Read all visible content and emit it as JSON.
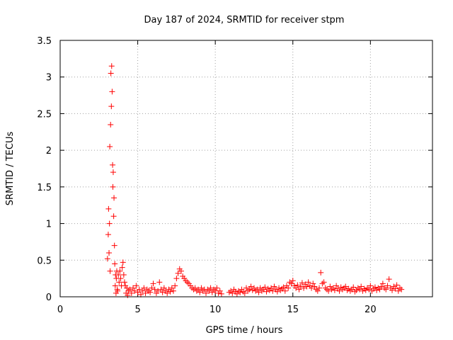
{
  "chart_data": {
    "type": "scatter",
    "title": "Day 187 of 2024, SRMTID for receiver stpm",
    "xlabel": "GPS time / hours",
    "ylabel": "SRMTID / TECUs",
    "xlim": [
      0,
      24
    ],
    "ylim": [
      0,
      3.5
    ],
    "x_ticks": [
      0,
      5,
      10,
      15,
      20
    ],
    "x_tick_labels": [
      "0",
      "5",
      "10",
      "15",
      "20"
    ],
    "y_ticks": [
      0,
      0.5,
      1,
      1.5,
      2,
      2.5,
      3,
      3.5
    ],
    "y_tick_labels": [
      "0",
      "0.5",
      "1",
      "1.5",
      "2",
      "2.5",
      "3",
      "3.5"
    ],
    "grid": true,
    "marker": "plus",
    "color": "#ff0000",
    "series": [
      {
        "name": "SRMTID",
        "x": [
          3.05,
          3.1,
          3.12,
          3.15,
          3.18,
          3.2,
          3.22,
          3.25,
          3.27,
          3.3,
          3.32,
          3.35,
          3.38,
          3.4,
          3.42,
          3.45,
          3.47,
          3.5,
          3.52,
          3.55,
          3.57,
          3.6,
          3.62,
          3.65,
          3.68,
          3.7,
          3.75,
          3.8,
          3.85,
          3.9,
          3.95,
          4.0,
          4.05,
          4.1,
          4.15,
          4.2,
          4.25,
          4.3,
          4.35,
          4.4,
          4.5,
          4.6,
          4.7,
          4.8,
          4.9,
          5.0,
          5.1,
          5.2,
          5.3,
          5.4,
          5.5,
          5.6,
          5.7,
          5.8,
          5.9,
          6.0,
          6.1,
          6.2,
          6.3,
          6.4,
          6.5,
          6.6,
          6.7,
          6.8,
          6.9,
          7.0,
          7.1,
          7.2,
          7.3,
          7.4,
          7.5,
          7.6,
          7.7,
          7.8,
          7.9,
          8.0,
          8.1,
          8.2,
          8.3,
          8.4,
          8.5,
          8.6,
          8.7,
          8.8,
          8.9,
          9.0,
          9.1,
          9.2,
          9.3,
          9.4,
          9.5,
          9.6,
          9.7,
          9.8,
          9.9,
          10.0,
          10.1,
          10.2,
          10.3,
          10.4,
          10.9,
          11.0,
          11.1,
          11.2,
          11.3,
          11.4,
          11.5,
          11.6,
          11.7,
          11.8,
          11.9,
          12.0,
          12.1,
          12.2,
          12.3,
          12.4,
          12.5,
          12.6,
          12.7,
          12.8,
          12.9,
          13.0,
          13.1,
          13.2,
          13.3,
          13.4,
          13.5,
          13.6,
          13.7,
          13.8,
          13.9,
          14.0,
          14.1,
          14.2,
          14.3,
          14.4,
          14.5,
          14.6,
          14.7,
          14.8,
          14.9,
          15.0,
          15.1,
          15.2,
          15.3,
          15.4,
          15.5,
          15.6,
          15.7,
          15.8,
          15.9,
          16.0,
          16.1,
          16.2,
          16.3,
          16.4,
          16.5,
          16.6,
          16.7,
          16.8,
          16.9,
          17.0,
          17.1,
          17.2,
          17.3,
          17.4,
          17.5,
          17.6,
          17.7,
          17.8,
          17.9,
          18.0,
          18.1,
          18.2,
          18.3,
          18.4,
          18.5,
          18.6,
          18.7,
          18.8,
          18.9,
          19.0,
          19.1,
          19.2,
          19.3,
          19.4,
          19.5,
          19.6,
          19.7,
          19.8,
          19.9,
          20.0,
          20.1,
          20.2,
          20.3,
          20.4,
          20.5,
          20.6,
          20.7,
          20.8,
          20.9,
          21.0,
          21.1,
          21.2,
          21.3,
          21.4,
          21.5,
          21.6,
          21.7,
          21.8,
          21.9,
          22.0
        ],
        "y": [
          0.52,
          0.85,
          1.2,
          0.6,
          1.0,
          2.05,
          0.35,
          2.35,
          3.05,
          2.6,
          3.15,
          2.8,
          1.8,
          1.5,
          1.7,
          1.1,
          1.35,
          0.7,
          0.45,
          0.15,
          0.3,
          0.05,
          0.25,
          0.35,
          0.1,
          0.08,
          0.3,
          0.2,
          0.35,
          0.25,
          0.15,
          0.4,
          0.47,
          0.3,
          0.2,
          0.15,
          0.05,
          0.12,
          0.02,
          0.08,
          0.1,
          0.05,
          0.12,
          0.08,
          0.15,
          0.06,
          0.1,
          0.03,
          0.08,
          0.12,
          0.05,
          0.1,
          0.08,
          0.06,
          0.12,
          0.18,
          0.1,
          0.05,
          0.08,
          0.2,
          0.1,
          0.06,
          0.12,
          0.08,
          0.05,
          0.1,
          0.07,
          0.12,
          0.08,
          0.15,
          0.25,
          0.32,
          0.38,
          0.35,
          0.28,
          0.25,
          0.22,
          0.2,
          0.18,
          0.15,
          0.12,
          0.1,
          0.12,
          0.08,
          0.1,
          0.06,
          0.12,
          0.08,
          0.1,
          0.05,
          0.1,
          0.08,
          0.12,
          0.06,
          0.1,
          0.08,
          0.12,
          0.05,
          0.08,
          0.04,
          0.06,
          0.08,
          0.05,
          0.1,
          0.07,
          0.04,
          0.08,
          0.06,
          0.1,
          0.07,
          0.05,
          0.12,
          0.08,
          0.1,
          0.14,
          0.09,
          0.12,
          0.08,
          0.1,
          0.06,
          0.12,
          0.08,
          0.1,
          0.13,
          0.07,
          0.11,
          0.09,
          0.12,
          0.08,
          0.14,
          0.1,
          0.07,
          0.12,
          0.09,
          0.11,
          0.13,
          0.08,
          0.15,
          0.12,
          0.2,
          0.18,
          0.22,
          0.15,
          0.12,
          0.16,
          0.1,
          0.14,
          0.19,
          0.12,
          0.17,
          0.14,
          0.2,
          0.15,
          0.12,
          0.18,
          0.14,
          0.1,
          0.08,
          0.12,
          0.33,
          0.18,
          0.2,
          0.12,
          0.1,
          0.08,
          0.14,
          0.1,
          0.12,
          0.09,
          0.15,
          0.11,
          0.08,
          0.13,
          0.1,
          0.12,
          0.14,
          0.09,
          0.11,
          0.08,
          0.1,
          0.13,
          0.07,
          0.09,
          0.12,
          0.1,
          0.14,
          0.08,
          0.11,
          0.09,
          0.12,
          0.1,
          0.15,
          0.08,
          0.11,
          0.13,
          0.09,
          0.12,
          0.1,
          0.14,
          0.18,
          0.12,
          0.1,
          0.15,
          0.24,
          0.12,
          0.09,
          0.14,
          0.11,
          0.16,
          0.08,
          0.12,
          0.1
        ]
      }
    ]
  }
}
